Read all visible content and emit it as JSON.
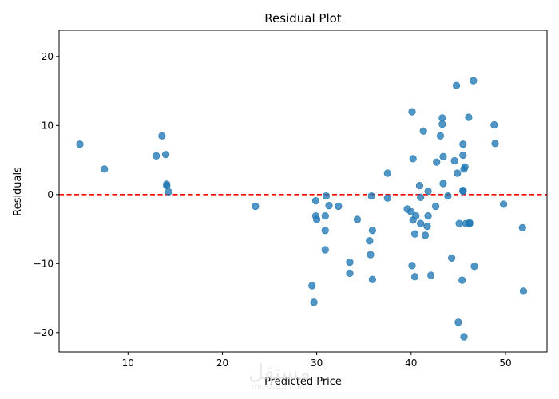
{
  "chart_data": {
    "type": "scatter",
    "title": "Residual Plot",
    "xlabel": "Predicted Price",
    "ylabel": "Residuals",
    "xlim": [
      2.7,
      54.4
    ],
    "ylim": [
      -22.8,
      23.8
    ],
    "xticks": [
      10,
      20,
      30,
      40,
      50
    ],
    "yticks": [
      -20,
      -10,
      0,
      10,
      20
    ],
    "xtick_labels": [
      "10",
      "20",
      "30",
      "40",
      "50"
    ],
    "ytick_labels": [
      "−20",
      "−10",
      "0",
      "10",
      "20"
    ],
    "reference_line": {
      "y": 0,
      "style": "dashed",
      "color": "#ff0000"
    },
    "point_color": "#1f77b4",
    "series": [
      {
        "name": "residuals",
        "x": [
          4.9,
          7.5,
          13.0,
          13.6,
          14.0,
          14.1,
          14.1,
          14.3,
          23.5,
          29.5,
          29.7,
          29.9,
          29.9,
          30.0,
          30.9,
          30.9,
          30.9,
          31.0,
          31.3,
          32.3,
          33.5,
          33.5,
          34.3,
          35.6,
          35.7,
          35.8,
          35.9,
          35.9,
          37.5,
          37.5,
          39.6,
          40.0,
          40.1,
          40.1,
          40.2,
          40.2,
          40.4,
          40.4,
          40.5,
          40.9,
          41.0,
          41.0,
          41.3,
          41.5,
          41.7,
          41.8,
          41.8,
          42.1,
          42.6,
          42.7,
          43.1,
          43.3,
          43.3,
          43.4,
          43.4,
          43.9,
          44.3,
          44.6,
          44.8,
          44.9,
          45.0,
          45.1,
          45.4,
          45.5,
          45.5,
          45.5,
          45.5,
          45.6,
          45.6,
          45.7,
          45.8,
          46.1,
          46.2,
          46.2,
          46.6,
          46.7,
          48.8,
          48.9,
          49.8,
          51.8,
          51.9
        ],
        "y": [
          7.3,
          3.7,
          5.6,
          8.5,
          5.8,
          1.5,
          1.3,
          0.4,
          -1.7,
          -13.2,
          -15.6,
          -3.1,
          -0.9,
          -3.6,
          -5.2,
          -3.1,
          -8.0,
          -0.2,
          -1.6,
          -1.7,
          -9.8,
          -11.4,
          -3.6,
          -6.7,
          -8.7,
          -0.2,
          -5.2,
          -12.3,
          3.1,
          -0.5,
          -2.1,
          -2.5,
          -10.3,
          12.0,
          5.2,
          -3.7,
          -11.9,
          -5.7,
          -3.1,
          1.3,
          -4.2,
          -0.4,
          9.2,
          -5.9,
          -4.6,
          -3.1,
          0.5,
          -11.7,
          -1.7,
          4.7,
          8.5,
          11.1,
          10.2,
          5.5,
          1.6,
          -0.2,
          -9.2,
          4.9,
          15.8,
          3.1,
          -18.5,
          -4.2,
          -12.4,
          0.6,
          7.3,
          5.7,
          0.5,
          3.7,
          -20.6,
          4.0,
          -4.2,
          11.2,
          -4.2,
          -4.1,
          16.5,
          -10.4,
          10.1,
          7.4,
          -1.4,
          -4.8,
          -14.0
        ]
      }
    ]
  },
  "watermark": {
    "main": "مستقل",
    "sub": "mostaql.com"
  }
}
